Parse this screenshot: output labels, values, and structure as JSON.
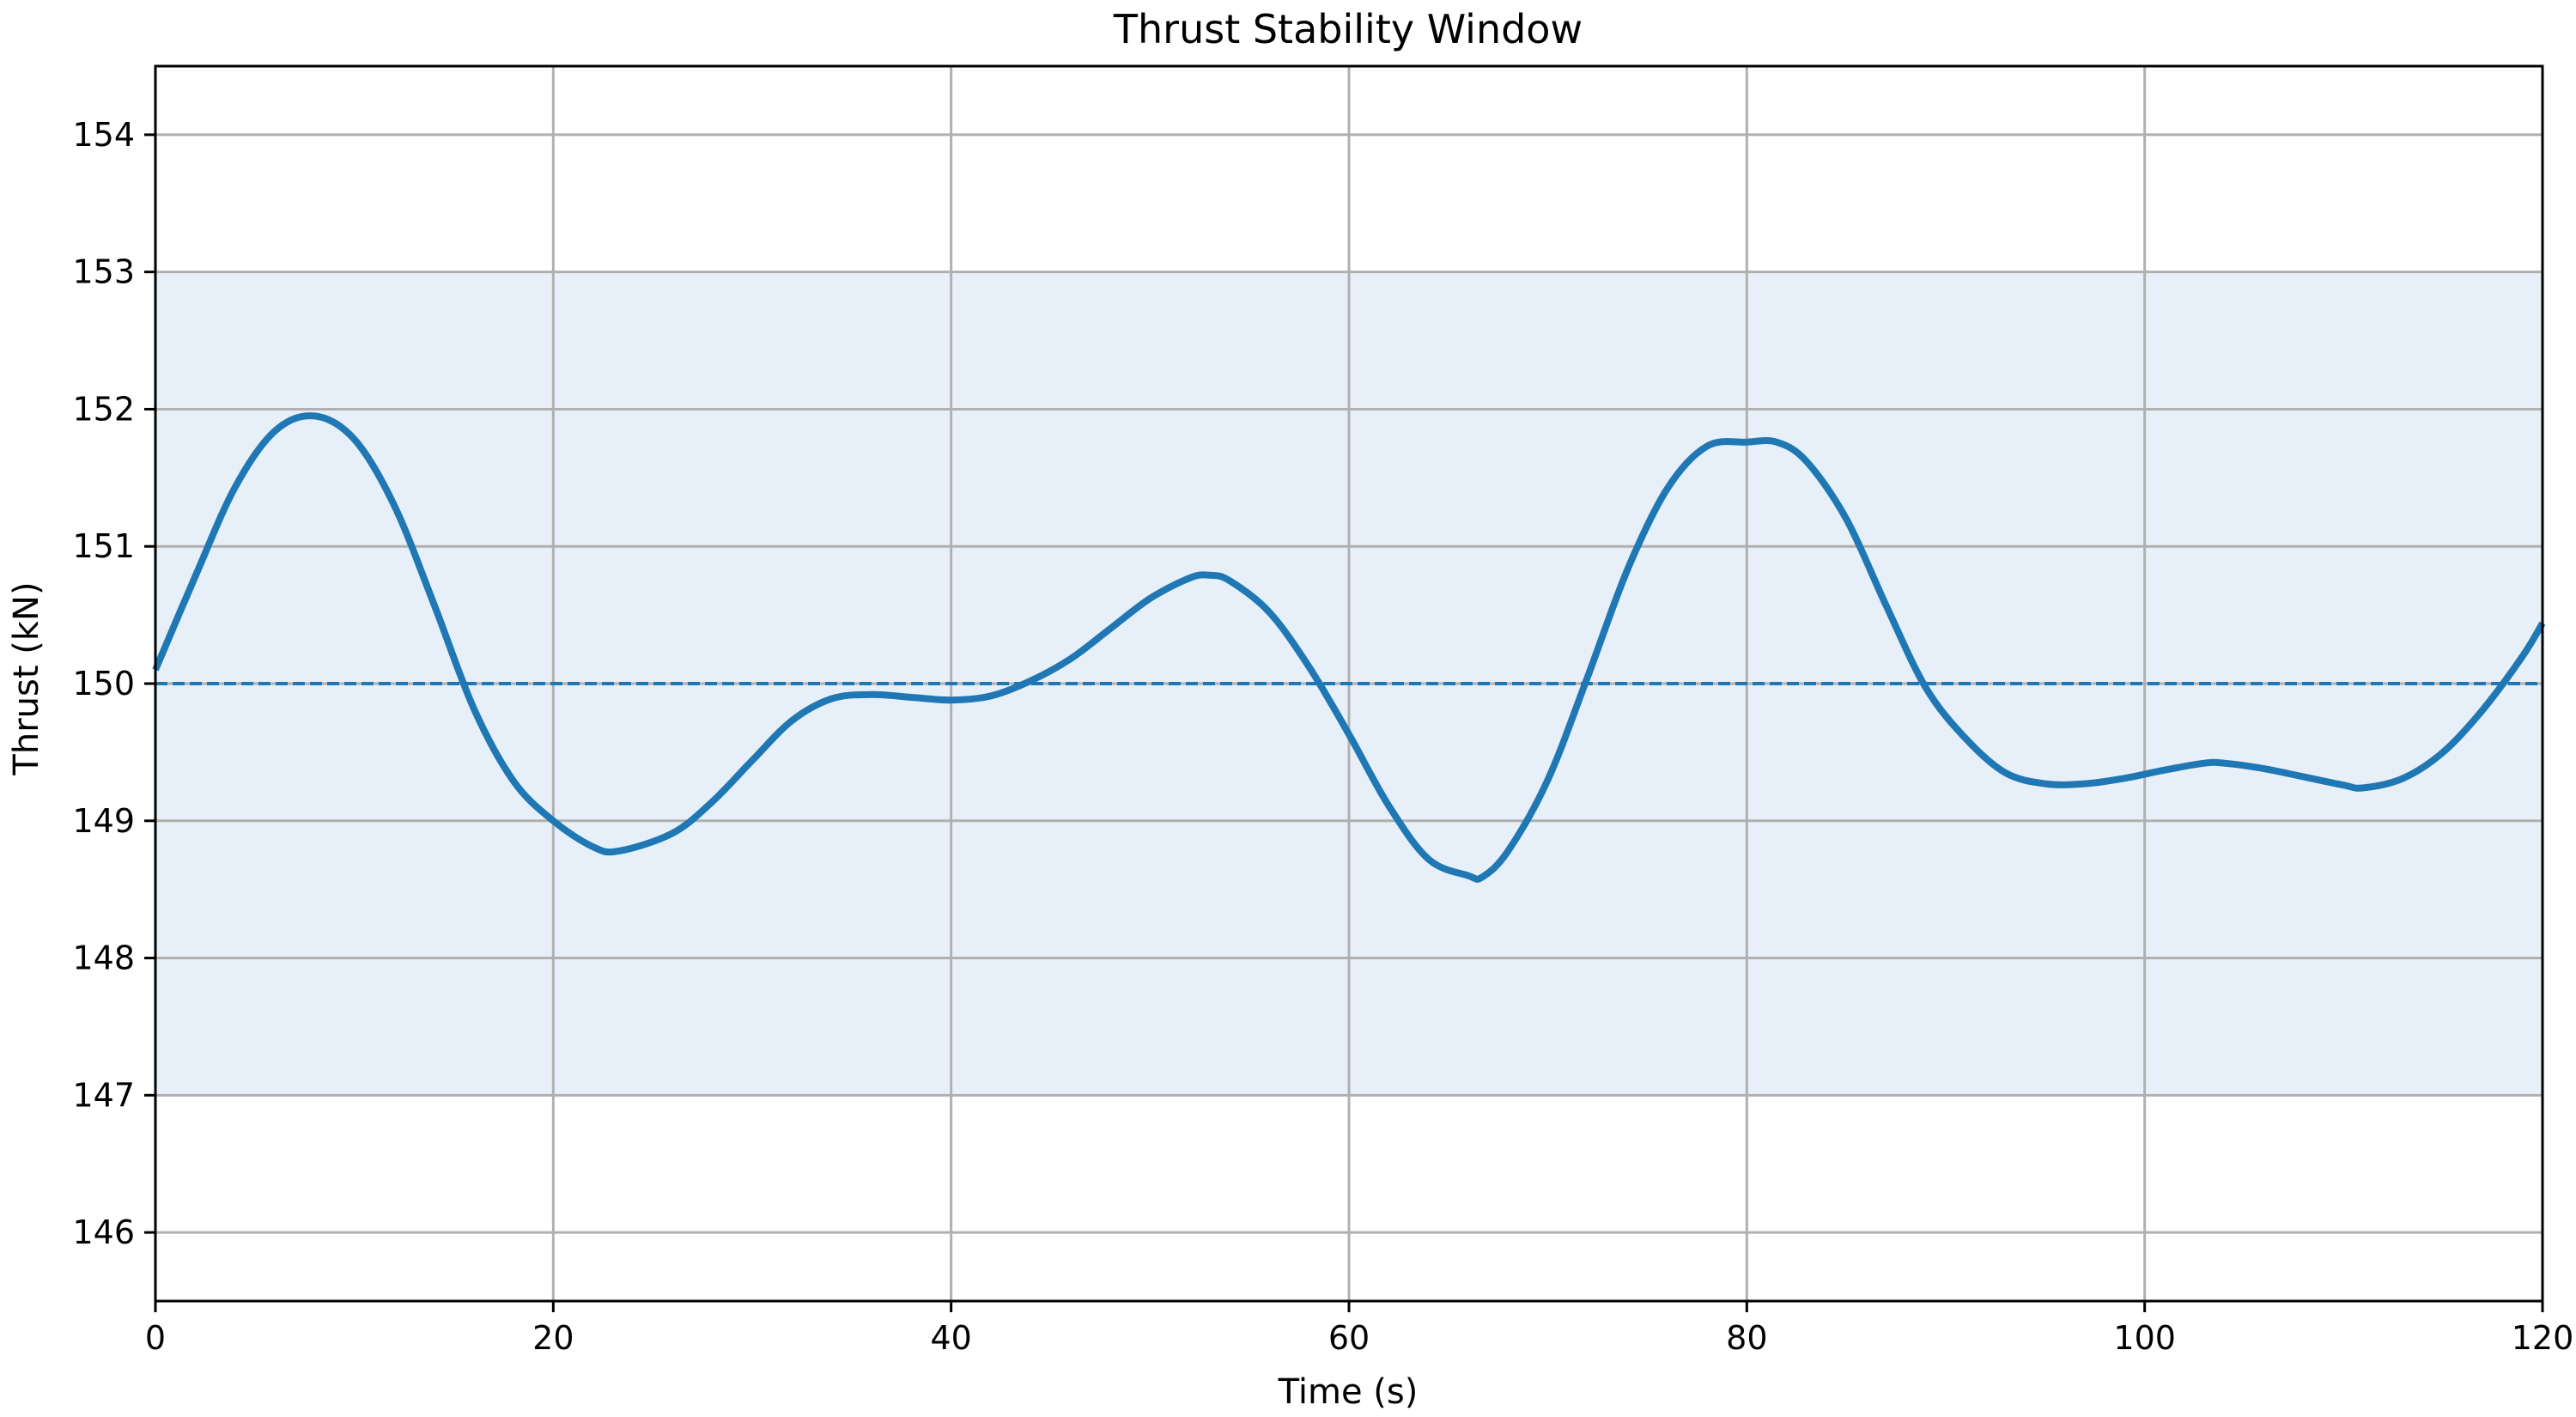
{
  "chart_data": {
    "type": "line",
    "title": "Thrust Stability Window",
    "xlabel": "Time (s)",
    "ylabel": "Thrust (kN)",
    "xlim": [
      0,
      120
    ],
    "ylim": [
      145.5,
      154.5
    ],
    "xticks": [
      "0",
      "20",
      "40",
      "60",
      "80",
      "100",
      "120"
    ],
    "yticks": [
      "146",
      "147",
      "148",
      "149",
      "150",
      "151",
      "152",
      "153",
      "154"
    ],
    "grid": true,
    "band": {
      "lower": 147,
      "upper": 153,
      "color": "#e7f0f8"
    },
    "reference_line": {
      "y": 150,
      "style": "dashed",
      "color": "#1f77b4"
    },
    "series": [
      {
        "color": "#1f77b4",
        "x": [
          0,
          2,
          4,
          6,
          8,
          10,
          12,
          14,
          16,
          18,
          20,
          22,
          23.3,
          26,
          28,
          30,
          32,
          34,
          36,
          38,
          40,
          42,
          44,
          46,
          48,
          50,
          52,
          53,
          54,
          56,
          58,
          60,
          62,
          64,
          66,
          66.7,
          68,
          70,
          72,
          74,
          76,
          78,
          80,
          81.5,
          83,
          85,
          87,
          89,
          91,
          93,
          95,
          97,
          99,
          101,
          103,
          104,
          106,
          108,
          110,
          111,
          113,
          115,
          117,
          119,
          120
        ],
        "y": [
          150.1,
          150.78,
          151.43,
          151.84,
          151.95,
          151.78,
          151.3,
          150.58,
          149.82,
          149.29,
          149.0,
          148.81,
          148.78,
          148.91,
          149.14,
          149.44,
          149.73,
          149.89,
          149.92,
          149.9,
          149.88,
          149.91,
          150.02,
          150.18,
          150.4,
          150.62,
          150.77,
          150.79,
          150.75,
          150.52,
          150.12,
          149.63,
          149.11,
          148.72,
          148.6,
          148.59,
          148.78,
          149.3,
          150.05,
          150.83,
          151.42,
          151.73,
          151.76,
          151.76,
          151.62,
          151.2,
          150.57,
          149.97,
          149.6,
          149.35,
          149.27,
          149.27,
          149.31,
          149.37,
          149.42,
          149.42,
          149.38,
          149.32,
          149.26,
          149.24,
          149.31,
          149.5,
          149.81,
          150.2,
          150.44
        ]
      }
    ]
  }
}
